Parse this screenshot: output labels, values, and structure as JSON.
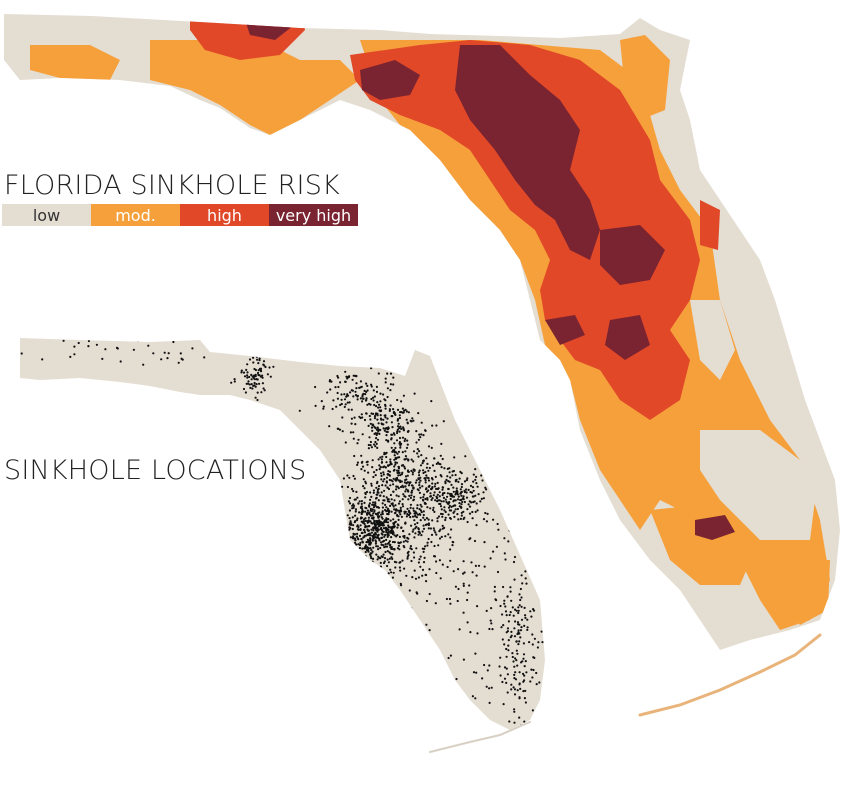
{
  "risk_map": {
    "title": "FLORIDA SINKHOLE RISK",
    "legend": [
      {
        "label": "low",
        "color": "#e4ddd2"
      },
      {
        "label": "mod.",
        "color": "#f6a03b"
      },
      {
        "label": "high",
        "color": "#e04828"
      },
      {
        "label": "very high",
        "color": "#7a2331"
      }
    ]
  },
  "locations_map": {
    "title": "SINKHOLE LOCATIONS",
    "land_color": "#e4ddd2",
    "point_color": "#111111"
  }
}
